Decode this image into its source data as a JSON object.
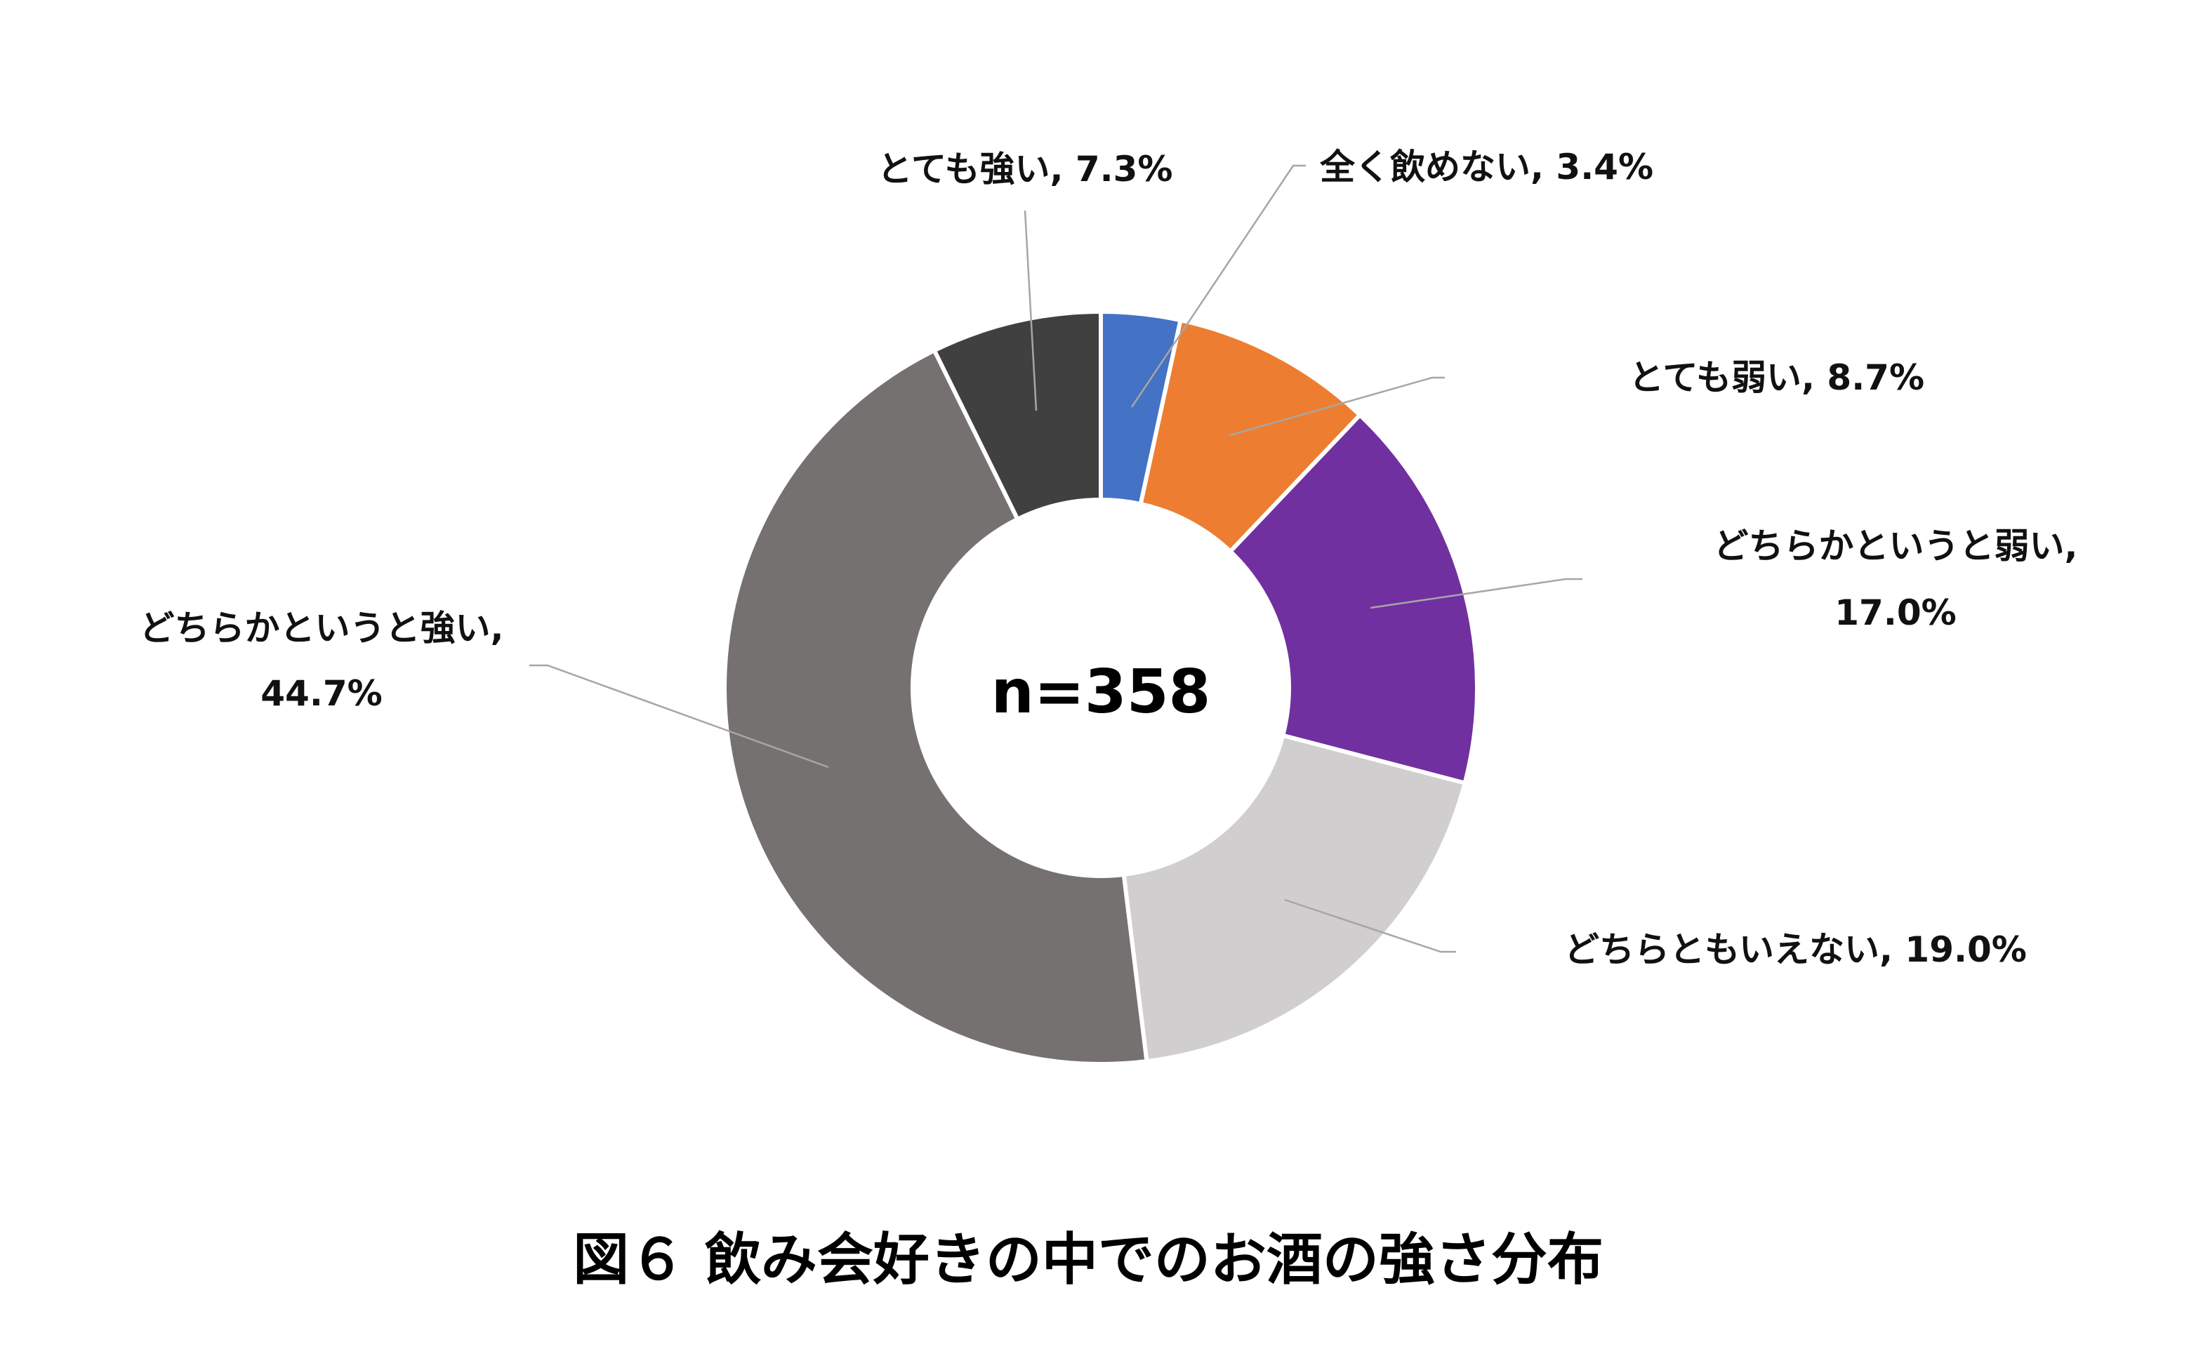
{
  "chart_data": {
    "type": "pie",
    "variant": "donut",
    "title": "図６ 飲み会好きの中でのお酒の強さ分布",
    "center_label": "n=358",
    "legend": "none",
    "slices": [
      {
        "label_lines": [
          "全く飲めない, 3.4%"
        ],
        "value": 3.4,
        "color": "#4472C4"
      },
      {
        "label_lines": [
          "とても弱い, 8.7%"
        ],
        "value": 8.7,
        "color": "#ED7D31"
      },
      {
        "label_lines": [
          "どちらかというと弱い,",
          "17.0%"
        ],
        "value": 17.0,
        "color": "#7030A0"
      },
      {
        "label_lines": [
          "どちらともいえない, 19.0%"
        ],
        "value": 19.0,
        "color": "#D0CECE"
      },
      {
        "label_lines": [
          "どちらかというと強い,",
          "44.7%"
        ],
        "value": 44.7,
        "color": "#767171"
      },
      {
        "label_lines": [
          "とても強い, 7.3%"
        ],
        "value": 7.3,
        "color": "#404040"
      }
    ]
  }
}
